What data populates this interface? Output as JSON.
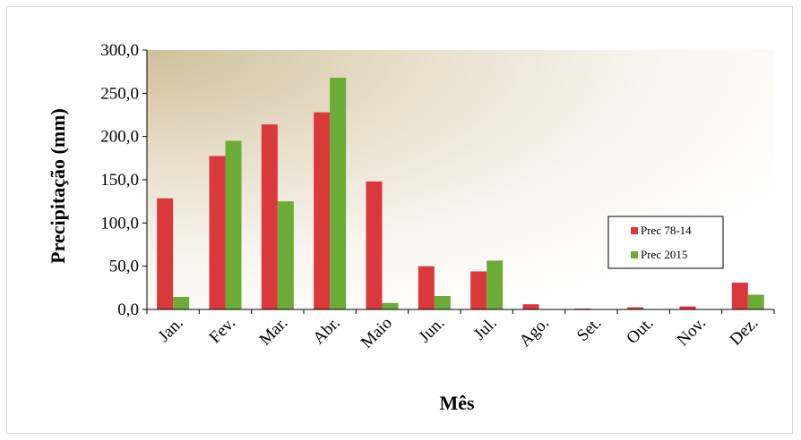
{
  "chart_data": {
    "type": "bar",
    "title": "",
    "xlabel": "Mês",
    "ylabel": "Precipitação (mm)",
    "categories": [
      "Jan.",
      "Fev.",
      "Mar.",
      "Abr.",
      "Maio",
      "Jun.",
      "Jul.",
      "Ago.",
      "Set.",
      "Out.",
      "Nov.",
      "Dez."
    ],
    "series": [
      {
        "name": "Prec 78-14",
        "color": "#d9393b",
        "values": [
          128.5,
          177.5,
          214.0,
          228.0,
          148.0,
          50.0,
          44.0,
          6.0,
          1.0,
          2.5,
          3.5,
          31.0
        ]
      },
      {
        "name": "Prec 2015",
        "color": "#6aac35",
        "values": [
          14.5,
          195.0,
          125.0,
          268.0,
          7.5,
          15.5,
          56.5,
          0.0,
          0.0,
          0.0,
          0.0,
          17.0
        ]
      }
    ],
    "ylim": [
      0,
      300
    ],
    "yticks": [
      "0,0",
      "50,0",
      "100,0",
      "150,0",
      "200,0",
      "250,0",
      "300,0"
    ],
    "ytick_values": [
      0,
      50,
      100,
      150,
      200,
      250,
      300
    ],
    "legend_position": "right",
    "grid": false
  }
}
